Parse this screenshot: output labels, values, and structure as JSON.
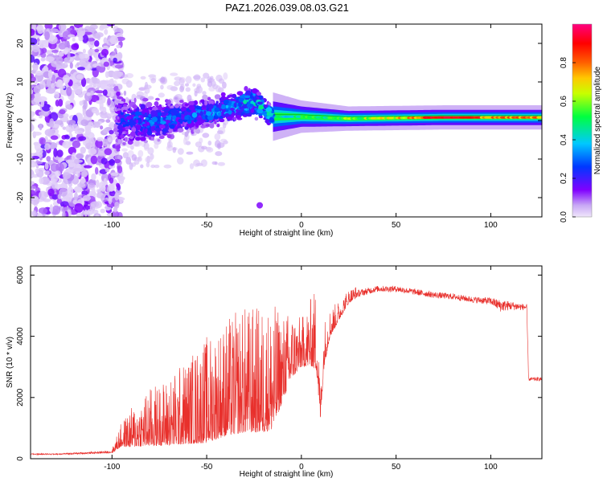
{
  "title": "PAZ1.2026.039.08.03.G21",
  "chart_data": [
    {
      "type": "heatmap",
      "name": "spectrogram",
      "xlabel": "Height of straight line (km)",
      "ylabel": "Frequency (Hz)",
      "xlim": [
        -143,
        127
      ],
      "ylim": [
        -25,
        25
      ],
      "xticks": [
        -100,
        -50,
        0,
        50,
        100
      ],
      "yticks": [
        -20,
        -10,
        0,
        10,
        20
      ],
      "colorbar": {
        "label": "Normalized spectral amplitude",
        "range": [
          0,
          1
        ],
        "ticks": [
          0.0,
          0.2,
          0.4,
          0.6,
          0.8
        ],
        "colors": [
          "#e8d8f8",
          "#8000ff",
          "#0050ff",
          "#00e0ff",
          "#00ff40",
          "#ffff00",
          "#ff8000",
          "#ff0000",
          "#ff0080"
        ]
      },
      "ridge": [
        {
          "x": -143,
          "f": 0,
          "spread": 25,
          "amp": 0.05
        },
        {
          "x": -100,
          "f": 0,
          "spread": 25,
          "amp": 0.05
        },
        {
          "x": -95,
          "f": 0,
          "spread": 8,
          "amp": 0.25
        },
        {
          "x": -80,
          "f": 0,
          "spread": 7,
          "amp": 0.3
        },
        {
          "x": -60,
          "f": 1,
          "spread": 5,
          "amp": 0.3
        },
        {
          "x": -40,
          "f": 3,
          "spread": 5,
          "amp": 0.35
        },
        {
          "x": -25,
          "f": 5,
          "spread": 5,
          "amp": 0.4
        },
        {
          "x": -15,
          "f": 1,
          "spread": 3,
          "amp": 0.45
        },
        {
          "x": 0,
          "f": 1,
          "spread": 2,
          "amp": 0.5
        },
        {
          "x": 25,
          "f": 0.5,
          "spread": 1.5,
          "amp": 0.6
        },
        {
          "x": 75,
          "f": 0.8,
          "spread": 1.5,
          "amp": 0.85
        },
        {
          "x": 127,
          "f": 0.8,
          "spread": 1.5,
          "amp": 0.8
        }
      ]
    },
    {
      "type": "line",
      "name": "snr",
      "xlabel": "Height of straight line (km)",
      "ylabel": "SNR (10 * v/v)",
      "xlim": [
        -143,
        127
      ],
      "ylim": [
        0,
        6300
      ],
      "xticks": [
        -100,
        -50,
        0,
        50,
        100
      ],
      "yticks": [
        0,
        2000,
        4000,
        6000
      ],
      "color": "#e8302c",
      "series": [
        {
          "name": "SNR",
          "x": [
            -143,
            -130,
            -115,
            -100,
            -95,
            -90,
            -80,
            -70,
            -60,
            -50,
            -40,
            -30,
            -20,
            -15,
            -10,
            -5,
            0,
            5,
            8,
            10,
            12,
            15,
            20,
            25,
            30,
            40,
            50,
            60,
            70,
            80,
            90,
            100,
            105,
            110,
            118,
            119,
            120,
            127
          ],
          "y": [
            150,
            150,
            180,
            220,
            600,
            700,
            900,
            1000,
            1200,
            1400,
            1700,
            1900,
            1900,
            2000,
            2600,
            3200,
            3400,
            3600,
            3600,
            1500,
            3400,
            4200,
            4700,
            5200,
            5400,
            5550,
            5550,
            5450,
            5350,
            5300,
            5200,
            5150,
            5000,
            5000,
            4950,
            4950,
            2600,
            2600
          ],
          "noise": [
            20,
            20,
            30,
            40,
            250,
            400,
            600,
            700,
            900,
            1100,
            1200,
            1300,
            1300,
            1300,
            900,
            700,
            500,
            700,
            900,
            300,
            500,
            300,
            200,
            150,
            120,
            100,
            100,
            100,
            100,
            100,
            100,
            120,
            200,
            150,
            100,
            100,
            60,
            60
          ]
        }
      ]
    }
  ]
}
